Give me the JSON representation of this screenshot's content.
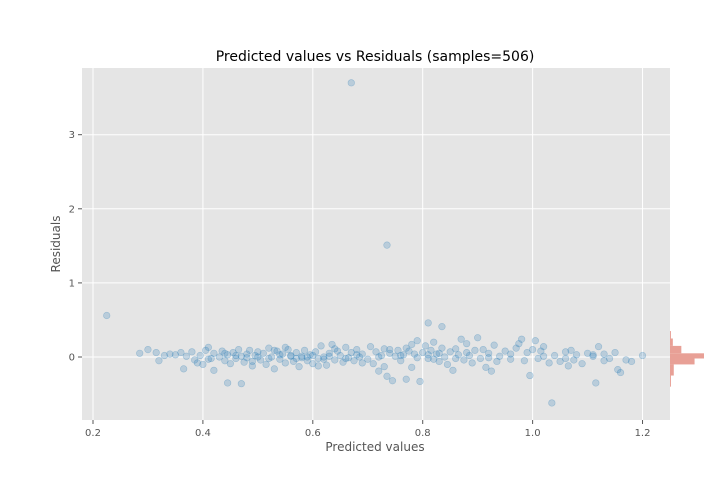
{
  "chart_data": {
    "type": "scatter",
    "title": "Predicted values vs Residuals (samples=506)",
    "xlabel": "Predicted values",
    "ylabel": "Residuals",
    "xlim": [
      0.18,
      1.25
    ],
    "ylim": [
      -0.85,
      3.9
    ],
    "xticks": [
      0.2,
      0.4,
      0.6,
      0.8,
      1.0,
      1.2
    ],
    "xtick_labels": [
      "0.2",
      "0.4",
      "0.6",
      "0.8",
      "1.0",
      "1.2"
    ],
    "yticks": [
      0,
      1,
      2,
      3
    ],
    "ytick_labels": [
      "0",
      "1",
      "2",
      "3"
    ],
    "grid": true,
    "background": "#e5e5e5",
    "point_color": "#1f77b4",
    "points": [
      [
        0.225,
        0.56
      ],
      [
        0.67,
        3.7
      ],
      [
        0.735,
        1.51
      ],
      [
        1.035,
        -0.62
      ],
      [
        0.445,
        -0.35
      ],
      [
        0.47,
        -0.36
      ],
      [
        1.115,
        -0.35
      ],
      [
        0.81,
        0.46
      ],
      [
        0.835,
        0.41
      ],
      [
        0.285,
        0.05
      ],
      [
        0.3,
        0.1
      ],
      [
        0.315,
        0.06
      ],
      [
        0.32,
        -0.05
      ],
      [
        0.33,
        0.02
      ],
      [
        0.34,
        0.04
      ],
      [
        0.35,
        0.03
      ],
      [
        0.36,
        0.06
      ],
      [
        0.365,
        -0.16
      ],
      [
        0.37,
        0.01
      ],
      [
        0.38,
        0.07
      ],
      [
        0.385,
        -0.04
      ],
      [
        0.39,
        -0.08
      ],
      [
        0.395,
        0.02
      ],
      [
        0.4,
        -0.1
      ],
      [
        0.405,
        0.09
      ],
      [
        0.41,
        0.13
      ],
      [
        0.415,
        -0.02
      ],
      [
        0.42,
        0.05
      ],
      [
        0.42,
        -0.18
      ],
      [
        0.43,
        0.0
      ],
      [
        0.435,
        0.08
      ],
      [
        0.44,
        -0.05
      ],
      [
        0.445,
        0.03
      ],
      [
        0.45,
        -0.09
      ],
      [
        0.455,
        0.06
      ],
      [
        0.46,
        -0.02
      ],
      [
        0.465,
        0.1
      ],
      [
        0.47,
        0.01
      ],
      [
        0.475,
        -0.07
      ],
      [
        0.48,
        0.04
      ],
      [
        0.485,
        0.09
      ],
      [
        0.49,
        -0.12
      ],
      [
        0.495,
        0.02
      ],
      [
        0.5,
        0.07
      ],
      [
        0.505,
        -0.04
      ],
      [
        0.51,
        0.05
      ],
      [
        0.515,
        -0.1
      ],
      [
        0.52,
        0.12
      ],
      [
        0.525,
        0.0
      ],
      [
        0.53,
        -0.16
      ],
      [
        0.535,
        0.08
      ],
      [
        0.54,
        -0.03
      ],
      [
        0.545,
        0.04
      ],
      [
        0.55,
        -0.08
      ],
      [
        0.555,
        0.1
      ],
      [
        0.56,
        0.02
      ],
      [
        0.565,
        -0.06
      ],
      [
        0.57,
        0.06
      ],
      [
        0.575,
        -0.13
      ],
      [
        0.58,
        0.01
      ],
      [
        0.585,
        0.09
      ],
      [
        0.59,
        -0.05
      ],
      [
        0.595,
        0.03
      ],
      [
        0.6,
        -0.09
      ],
      [
        0.605,
        0.07
      ],
      [
        0.61,
        -0.02
      ],
      [
        0.615,
        0.15
      ],
      [
        0.62,
        0.0
      ],
      [
        0.625,
        -0.11
      ],
      [
        0.63,
        0.05
      ],
      [
        0.635,
        0.17
      ],
      [
        0.64,
        -0.04
      ],
      [
        0.645,
        0.08
      ],
      [
        0.65,
        0.02
      ],
      [
        0.655,
        -0.07
      ],
      [
        0.66,
        0.13
      ],
      [
        0.665,
        -0.01
      ],
      [
        0.67,
        0.06
      ],
      [
        0.675,
        -0.05
      ],
      [
        0.68,
        0.1
      ],
      [
        0.685,
        0.0
      ],
      [
        0.69,
        0.04
      ],
      [
        0.7,
        -0.03
      ],
      [
        0.705,
        0.14
      ],
      [
        0.71,
        -0.09
      ],
      [
        0.715,
        0.07
      ],
      [
        0.72,
        -0.19
      ],
      [
        0.725,
        0.02
      ],
      [
        0.73,
        0.11
      ],
      [
        0.735,
        -0.26
      ],
      [
        0.74,
        0.05
      ],
      [
        0.745,
        -0.32
      ],
      [
        0.75,
        0.01
      ],
      [
        0.755,
        0.09
      ],
      [
        0.76,
        -0.05
      ],
      [
        0.765,
        0.03
      ],
      [
        0.77,
        -0.3
      ],
      [
        0.775,
        0.08
      ],
      [
        0.78,
        -0.14
      ],
      [
        0.785,
        0.04
      ],
      [
        0.79,
        0.22
      ],
      [
        0.795,
        -0.33
      ],
      [
        0.8,
        0.06
      ],
      [
        0.805,
        0.15
      ],
      [
        0.81,
        -0.02
      ],
      [
        0.815,
        0.09
      ],
      [
        0.82,
        0.2
      ],
      [
        0.825,
        0.04
      ],
      [
        0.83,
        -0.06
      ],
      [
        0.835,
        0.12
      ],
      [
        0.84,
        0.0
      ],
      [
        0.845,
        -0.1
      ],
      [
        0.85,
        0.07
      ],
      [
        0.855,
        -0.18
      ],
      [
        0.86,
        0.11
      ],
      [
        0.865,
        0.03
      ],
      [
        0.87,
        0.24
      ],
      [
        0.875,
        -0.04
      ],
      [
        0.88,
        0.18
      ],
      [
        0.885,
        0.02
      ],
      [
        0.89,
        -0.08
      ],
      [
        0.895,
        0.09
      ],
      [
        0.9,
        0.26
      ],
      [
        0.905,
        -0.02
      ],
      [
        0.91,
        0.1
      ],
      [
        0.915,
        -0.14
      ],
      [
        0.92,
        0.05
      ],
      [
        0.925,
        -0.19
      ],
      [
        0.93,
        0.16
      ],
      [
        0.935,
        -0.06
      ],
      [
        0.94,
        0.01
      ],
      [
        0.95,
        0.08
      ],
      [
        0.96,
        -0.03
      ],
      [
        0.97,
        0.12
      ],
      [
        0.975,
        0.18
      ],
      [
        0.98,
        0.24
      ],
      [
        0.985,
        -0.05
      ],
      [
        0.99,
        0.06
      ],
      [
        0.995,
        -0.25
      ],
      [
        1.0,
        0.1
      ],
      [
        1.005,
        0.22
      ],
      [
        1.01,
        -0.02
      ],
      [
        1.015,
        0.08
      ],
      [
        1.02,
        0.14
      ],
      [
        1.03,
        -0.08
      ],
      [
        1.04,
        0.02
      ],
      [
        1.05,
        -0.06
      ],
      [
        1.06,
        0.07
      ],
      [
        1.065,
        -0.12
      ],
      [
        1.07,
        0.09
      ],
      [
        1.075,
        -0.04
      ],
      [
        1.08,
        0.03
      ],
      [
        1.09,
        -0.09
      ],
      [
        1.1,
        0.05
      ],
      [
        1.11,
        0.01
      ],
      [
        1.12,
        0.14
      ],
      [
        1.13,
        0.04
      ],
      [
        1.14,
        -0.02
      ],
      [
        1.15,
        0.06
      ],
      [
        1.155,
        -0.17
      ],
      [
        1.16,
        -0.21
      ],
      [
        1.17,
        -0.04
      ],
      [
        1.18,
        -0.06
      ],
      [
        1.2,
        0.02
      ],
      [
        0.52,
        -0.02
      ],
      [
        0.56,
        0.01
      ],
      [
        0.58,
        -0.01
      ],
      [
        0.6,
        0.02
      ],
      [
        0.62,
        -0.03
      ],
      [
        0.5,
        0.0
      ],
      [
        0.54,
        0.03
      ],
      [
        0.57,
        -0.02
      ],
      [
        0.59,
        0.0
      ],
      [
        0.63,
        0.01
      ],
      [
        0.48,
        -0.01
      ],
      [
        0.46,
        0.02
      ],
      [
        0.66,
        -0.02
      ],
      [
        0.68,
        0.03
      ],
      [
        0.72,
        0.0
      ],
      [
        0.76,
        0.02
      ],
      [
        0.79,
        -0.01
      ],
      [
        0.81,
        0.03
      ],
      [
        0.83,
        0.05
      ],
      [
        0.86,
        -0.02
      ],
      [
        0.74,
        0.1
      ],
      [
        0.77,
        0.12
      ],
      [
        0.69,
        -0.08
      ],
      [
        0.64,
        0.11
      ],
      [
        0.53,
        0.09
      ],
      [
        0.49,
        -0.06
      ],
      [
        0.44,
        0.05
      ],
      [
        0.41,
        -0.03
      ],
      [
        0.55,
        0.13
      ],
      [
        0.61,
        -0.12
      ],
      [
        0.73,
        -0.13
      ],
      [
        0.78,
        0.17
      ],
      [
        0.82,
        -0.03
      ],
      [
        0.88,
        0.06
      ],
      [
        0.92,
        -0.01
      ],
      [
        0.96,
        0.04
      ],
      [
        1.02,
        0.01
      ],
      [
        1.06,
        -0.02
      ],
      [
        1.11,
        0.03
      ],
      [
        1.13,
        -0.05
      ]
    ],
    "marginal_histogram": {
      "orientation": "horizontal",
      "color": "#e8a096",
      "bins": [
        {
          "y0": -0.4,
          "y1": -0.25,
          "count": 1
        },
        {
          "y0": -0.25,
          "y1": -0.1,
          "count": 4
        },
        {
          "y0": -0.1,
          "y1": -0.02,
          "count": 26
        },
        {
          "y0": -0.02,
          "y1": 0.05,
          "count": 36
        },
        {
          "y0": 0.05,
          "y1": 0.15,
          "count": 12
        },
        {
          "y0": 0.15,
          "y1": 0.25,
          "count": 3
        },
        {
          "y0": 0.25,
          "y1": 0.35,
          "count": 1
        }
      ]
    }
  }
}
